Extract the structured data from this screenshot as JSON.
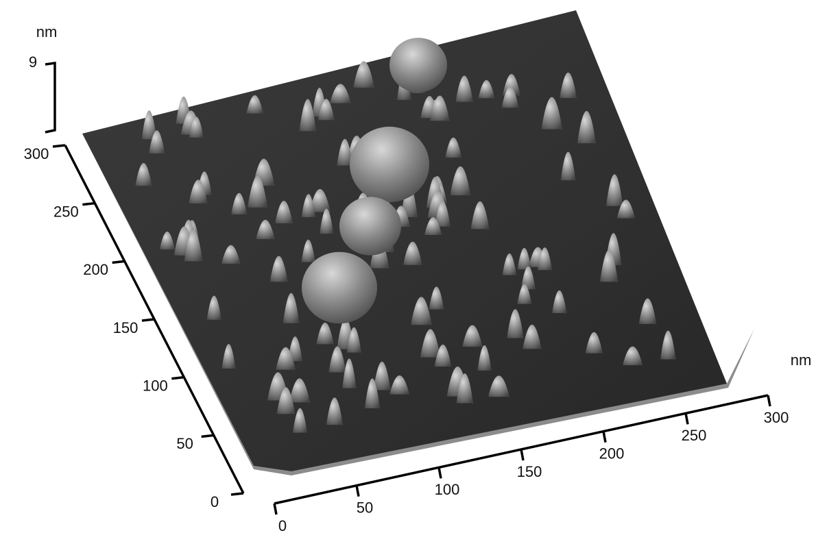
{
  "z_axis": {
    "unit": "nm",
    "max": 9
  },
  "y_axis": {
    "ticks": [
      0,
      50,
      100,
      150,
      200,
      250,
      300
    ]
  },
  "x_axis": {
    "unit": "nm",
    "ticks": [
      0,
      50,
      100,
      150,
      200,
      250,
      300
    ]
  }
}
